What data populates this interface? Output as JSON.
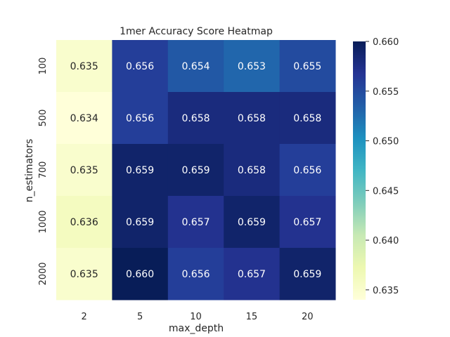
{
  "chart_data": {
    "type": "heatmap",
    "title": "1mer Accuracy Score Heatmap",
    "xlabel": "max_depth",
    "ylabel": "n_estimators",
    "x_categories": [
      "2",
      "5",
      "10",
      "15",
      "20"
    ],
    "y_categories": [
      "100",
      "500",
      "700",
      "1000",
      "2000"
    ],
    "values": [
      [
        0.635,
        0.656,
        0.654,
        0.653,
        0.655
      ],
      [
        0.634,
        0.656,
        0.658,
        0.658,
        0.658
      ],
      [
        0.635,
        0.659,
        0.659,
        0.658,
        0.656
      ],
      [
        0.636,
        0.659,
        0.657,
        0.659,
        0.657
      ],
      [
        0.635,
        0.66,
        0.656,
        0.657,
        0.659
      ]
    ],
    "value_labels": [
      [
        "0.635",
        "0.656",
        "0.654",
        "0.653",
        "0.655"
      ],
      [
        "0.634",
        "0.656",
        "0.658",
        "0.658",
        "0.658"
      ],
      [
        "0.635",
        "0.659",
        "0.659",
        "0.658",
        "0.656"
      ],
      [
        "0.636",
        "0.659",
        "0.657",
        "0.659",
        "0.657"
      ],
      [
        "0.635",
        "0.660",
        "0.656",
        "0.657",
        "0.659"
      ]
    ],
    "colormap": "YlGnBu",
    "color_range": [
      0.634,
      0.66
    ],
    "colorbar_ticks": [
      "0.635",
      "0.640",
      "0.645",
      "0.650",
      "0.655",
      "0.660"
    ],
    "colorbar_tick_values": [
      0.635,
      0.64,
      0.645,
      0.65,
      0.655,
      0.66
    ],
    "grid": false
  }
}
